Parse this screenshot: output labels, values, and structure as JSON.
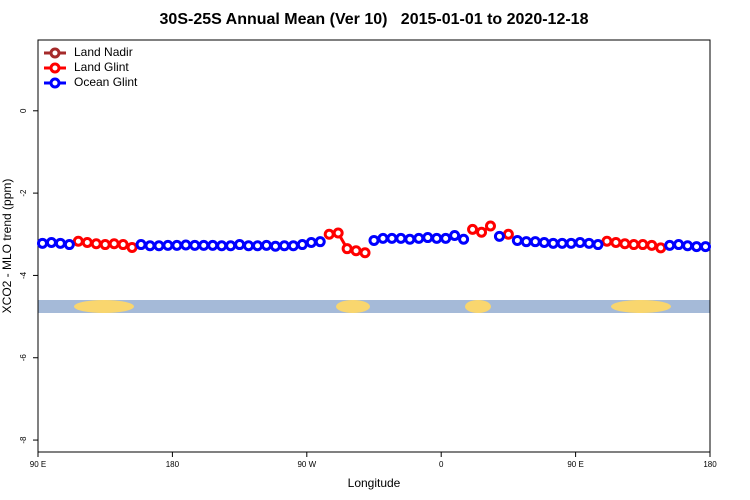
{
  "chart_data": {
    "type": "line",
    "title": "30S-25S Annual Mean (Ver 10)   2015-01-01 to 2020-12-18",
    "x_label": "Longitude",
    "y_label": "XCO2 - MLO trend (ppm)",
    "xlim": [
      90,
      540
    ],
    "ylim": [
      -8.29,
      1.72
    ],
    "xticks": [
      {
        "value": 90,
        "label": "90 E"
      },
      180,
      {
        "value": 270,
        "label": "90 W"
      },
      {
        "value": 360,
        "label": "0"
      },
      {
        "value": 450,
        "label": "90 E"
      },
      {
        "value": 540,
        "label": "180"
      }
    ],
    "yticks": [
      0,
      -2,
      -4,
      -6,
      -8
    ],
    "grid": false,
    "legend": "top-left",
    "x": [
      93,
      99,
      105,
      111,
      117,
      123,
      129,
      135,
      141,
      147,
      153,
      159,
      165,
      171,
      177,
      183,
      189,
      195,
      201,
      207,
      213,
      219,
      225,
      231,
      237,
      243,
      249,
      255,
      261,
      267,
      273,
      279,
      285,
      291,
      297,
      303,
      309,
      315,
      321,
      327,
      333,
      339,
      345,
      351,
      357,
      363,
      369,
      375,
      381,
      387,
      393,
      399,
      405,
      411,
      417,
      423,
      429,
      435,
      441,
      447,
      453,
      459,
      465,
      471,
      477,
      483,
      489,
      495,
      501,
      507,
      513,
      519,
      525,
      531,
      537
    ],
    "series": [
      {
        "name": "Land Nadir",
        "color": "#a52a2a",
        "values": [
          null,
          null,
          null,
          null,
          null,
          null,
          null,
          null,
          null,
          null,
          null,
          null,
          null,
          null,
          null,
          null,
          null,
          null,
          null,
          null,
          null,
          null,
          null,
          null,
          null,
          null,
          null,
          null,
          null,
          null,
          null,
          null,
          null,
          null,
          null,
          null,
          null,
          null,
          null,
          null,
          null,
          null,
          null,
          null,
          null,
          null,
          null,
          null,
          null,
          null,
          null,
          null,
          null,
          null,
          null,
          null,
          null,
          null,
          null,
          null,
          null,
          null,
          null,
          null,
          null,
          null,
          null,
          null,
          null,
          null,
          null,
          null,
          null,
          null,
          null
        ]
      },
      {
        "name": "Land Glint",
        "color": "#ff0000",
        "values": [
          null,
          null,
          null,
          null,
          -3.17,
          -3.2,
          -3.23,
          -3.25,
          -3.23,
          -3.25,
          -3.32,
          null,
          null,
          null,
          null,
          null,
          null,
          null,
          null,
          null,
          null,
          null,
          null,
          null,
          null,
          null,
          null,
          null,
          null,
          null,
          null,
          null,
          -3.0,
          -2.97,
          -3.35,
          -3.4,
          -3.45,
          null,
          null,
          null,
          null,
          null,
          null,
          null,
          null,
          null,
          null,
          null,
          -2.88,
          -2.95,
          -2.8,
          null,
          -3.0,
          null,
          null,
          null,
          null,
          null,
          null,
          null,
          null,
          null,
          null,
          -3.17,
          -3.2,
          -3.23,
          -3.25,
          -3.25,
          -3.27,
          -3.33,
          null,
          null,
          null,
          null,
          null
        ]
      },
      {
        "name": "Ocean Glint",
        "color": "#0000ff",
        "values": [
          -3.22,
          -3.2,
          -3.22,
          -3.25,
          null,
          null,
          null,
          null,
          null,
          null,
          null,
          -3.25,
          -3.28,
          -3.28,
          -3.27,
          -3.27,
          -3.26,
          -3.27,
          -3.27,
          -3.27,
          -3.28,
          -3.28,
          -3.25,
          -3.28,
          -3.28,
          -3.27,
          -3.29,
          -3.28,
          -3.28,
          -3.25,
          -3.2,
          -3.18,
          null,
          null,
          null,
          null,
          null,
          -3.15,
          -3.1,
          -3.1,
          -3.1,
          -3.12,
          -3.1,
          -3.08,
          -3.1,
          -3.1,
          -3.03,
          -3.12,
          null,
          null,
          null,
          -3.05,
          null,
          -3.15,
          -3.18,
          -3.18,
          -3.2,
          -3.22,
          -3.22,
          -3.22,
          -3.2,
          -3.22,
          -3.25,
          null,
          null,
          null,
          null,
          null,
          null,
          null,
          -3.27,
          -3.25,
          -3.28,
          -3.3,
          -3.3
        ]
      }
    ]
  }
}
